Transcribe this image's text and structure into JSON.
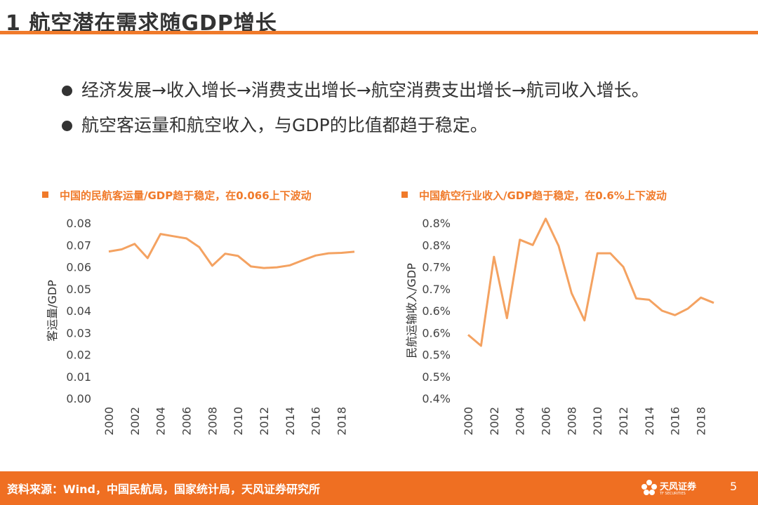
{
  "header": {
    "title": "1 航空潜在需求随GDP增长"
  },
  "bullets": [
    "经济发展→收入增长→消费支出增长→航空消费支出增长→航司收入增长。",
    "航空客运量和航空收入，与GDP的比值都趋于稳定。"
  ],
  "chart_data": [
    {
      "type": "line",
      "title": "中国的民航客运量/GDP趋于稳定，在0.066上下波动",
      "ylabel": "客运量/GDP",
      "xlabel": "",
      "x": [
        2000,
        2001,
        2002,
        2003,
        2004,
        2005,
        2006,
        2007,
        2008,
        2009,
        2010,
        2011,
        2012,
        2013,
        2014,
        2015,
        2016,
        2017,
        2018,
        2019
      ],
      "series": [
        {
          "values": [
            0.067,
            0.068,
            0.0705,
            0.064,
            0.075,
            0.074,
            0.073,
            0.069,
            0.0605,
            0.066,
            0.065,
            0.0602,
            0.0595,
            0.0598,
            0.0607,
            0.063,
            0.0652,
            0.0662,
            0.0664,
            0.0669
          ],
          "color": "#f4a261"
        }
      ],
      "ylim": [
        0,
        0.08
      ],
      "yticks": [
        "0.08",
        "0.07",
        "0.06",
        "0.05",
        "0.04",
        "0.03",
        "0.02",
        "0.01",
        "0.00"
      ],
      "xticks": [
        "2000",
        "2002",
        "2004",
        "2006",
        "2008",
        "2010",
        "2012",
        "2014",
        "2016",
        "2018"
      ],
      "grid": false,
      "legend": "none"
    },
    {
      "type": "line",
      "title": "中国航空行业收入/GDP趋于稳定，在0.6%上下波动",
      "ylabel": "民航运输收入/GDP",
      "xlabel": "",
      "x": [
        2000,
        2001,
        2002,
        2003,
        2004,
        2005,
        2006,
        2007,
        2008,
        2009,
        2010,
        2011,
        2012,
        2013,
        2014,
        2015,
        2016,
        2017,
        2018,
        2019
      ],
      "series": [
        {
          "values": [
            0.545,
            0.52,
            0.723,
            0.583,
            0.762,
            0.75,
            0.81,
            0.748,
            0.64,
            0.578,
            0.731,
            0.731,
            0.7,
            0.628,
            0.625,
            0.6,
            0.59,
            0.605,
            0.63,
            0.618
          ],
          "color": "#f4a261"
        }
      ],
      "ylim": [
        0.4,
        0.8
      ],
      "yticks": [
        "0.8%",
        "0.8%",
        "0.7%",
        "0.7%",
        "0.6%",
        "0.6%",
        "0.5%",
        "0.5%",
        "0.4%"
      ],
      "xticks": [
        "2000",
        "2002",
        "2004",
        "2006",
        "2008",
        "2010",
        "2012",
        "2014",
        "2016",
        "2018"
      ],
      "grid": false,
      "legend": "none"
    }
  ],
  "footer": {
    "source": "资料来源：Wind，中国民航局，国家统计局，天风证券研究所",
    "logo_text": "天风证券",
    "logo_sub": "TF SECURITIES",
    "page": "5"
  },
  "colors": {
    "accent": "#f07a2a",
    "footer": "#ef6f22",
    "line": "#f4a261"
  },
  "icons": {
    "bullet": "filled-circle",
    "chart_marker": "filled-square",
    "logo": "flower-logo-icon"
  }
}
